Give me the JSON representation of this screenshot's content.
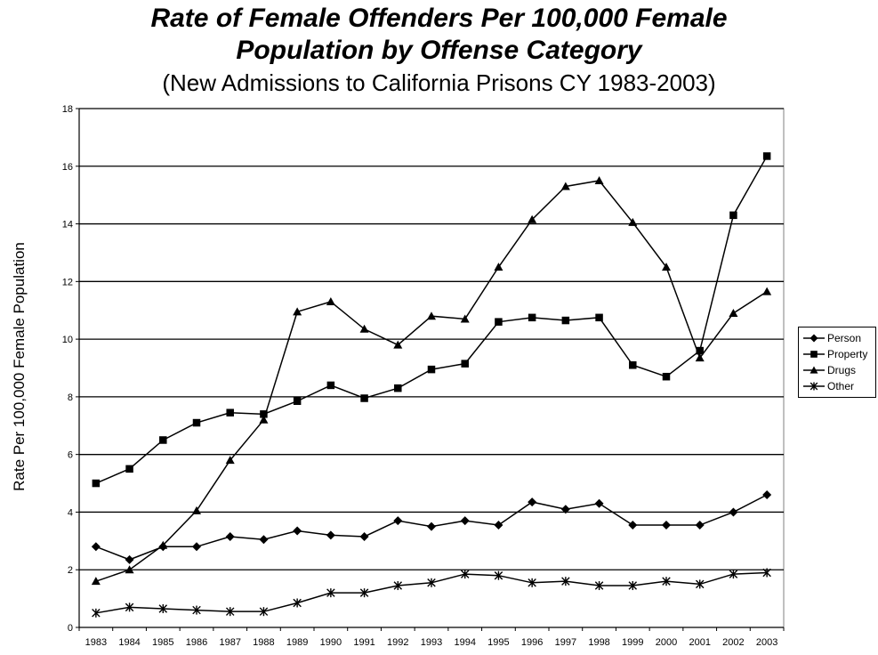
{
  "chart_data": {
    "type": "line",
    "title_line1": "Rate of Female Offenders Per 100,000 Female",
    "title_line2": "Population by Offense Category",
    "subtitle": "(New Admissions to California Prisons CY 1983-2003)",
    "xlabel": "",
    "ylabel": "Rate Per 100,000 Female Population",
    "ylim": [
      0,
      18
    ],
    "yticks": [
      "0",
      "2",
      "4",
      "6",
      "8",
      "10",
      "12",
      "14",
      "16",
      "18"
    ],
    "grid": "horizontal",
    "legend_position": "right",
    "categories": [
      "1983",
      "1984",
      "1985",
      "1986",
      "1987",
      "1988",
      "1989",
      "1990",
      "1991",
      "1992",
      "1993",
      "1994",
      "1995",
      "1996",
      "1997",
      "1998",
      "1999",
      "2000",
      "2001",
      "2002",
      "2003"
    ],
    "series": [
      {
        "name": "Person",
        "marker": "diamond",
        "values": [
          2.8,
          2.35,
          2.8,
          2.8,
          3.15,
          3.05,
          3.35,
          3.2,
          3.15,
          3.7,
          3.5,
          3.7,
          3.55,
          4.35,
          4.1,
          4.3,
          3.55,
          3.55,
          3.55,
          4.0,
          4.6
        ]
      },
      {
        "name": "Property",
        "marker": "square",
        "values": [
          5.0,
          5.5,
          6.5,
          7.1,
          7.45,
          7.4,
          7.85,
          8.4,
          7.95,
          8.3,
          8.95,
          9.15,
          10.6,
          10.75,
          10.65,
          10.75,
          9.1,
          8.7,
          9.6,
          14.3,
          16.35
        ]
      },
      {
        "name": "Drugs",
        "marker": "triangle",
        "values": [
          1.6,
          2.0,
          2.85,
          4.05,
          5.8,
          7.2,
          10.95,
          11.3,
          10.35,
          9.8,
          10.8,
          10.7,
          12.5,
          14.15,
          15.3,
          15.5,
          14.05,
          12.5,
          9.35,
          10.9,
          11.65
        ]
      },
      {
        "name": "Other",
        "marker": "asterisk",
        "values": [
          0.5,
          0.7,
          0.65,
          0.6,
          0.55,
          0.55,
          0.85,
          1.2,
          1.2,
          1.45,
          1.55,
          1.85,
          1.8,
          1.55,
          1.6,
          1.45,
          1.45,
          1.6,
          1.5,
          1.85,
          1.9
        ]
      }
    ]
  }
}
